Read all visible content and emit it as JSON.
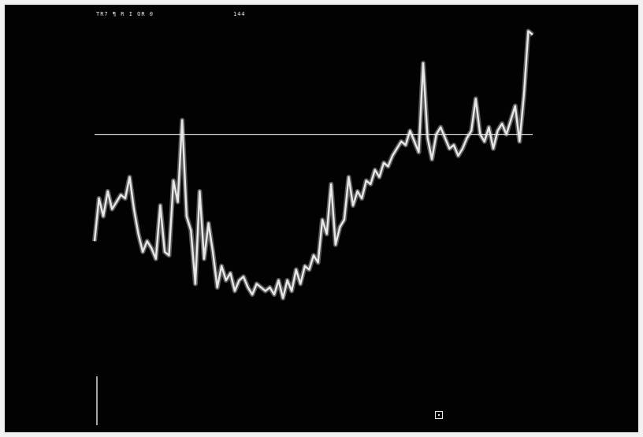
{
  "header": {
    "code": "TR7 ¶ R I OR 0",
    "counter": "144"
  },
  "colors": {
    "background": "#020202",
    "trace": "#e8e8e8",
    "frame": "#f2f2f2"
  },
  "chart_data": {
    "type": "line",
    "title": "",
    "xlabel": "",
    "ylabel": "",
    "grid": false,
    "legend": "none",
    "xlim": [
      0,
      100
    ],
    "ylim": [
      0,
      100
    ],
    "threshold": 68,
    "series": [
      {
        "x": [
          0,
          1,
          2,
          3,
          4,
          5,
          6,
          7,
          8,
          9,
          10,
          11,
          12,
          13,
          14,
          15,
          16,
          17,
          18,
          19,
          20,
          21,
          22,
          23,
          24,
          25,
          26,
          27,
          28,
          29,
          30,
          31,
          32,
          33,
          34,
          35,
          36,
          37,
          38,
          39,
          40,
          41,
          42,
          43,
          44,
          45,
          46,
          47,
          48,
          49,
          50,
          51,
          52,
          53,
          54,
          55,
          56,
          57,
          58,
          59,
          60,
          61,
          62,
          63,
          64,
          65,
          66,
          67,
          68,
          69,
          70,
          71,
          72,
          73,
          74,
          75,
          76,
          77,
          78,
          79,
          80,
          81,
          82,
          83,
          84,
          85,
          86,
          87,
          88,
          89,
          90,
          91,
          92,
          93,
          94,
          95,
          96,
          97,
          98,
          99,
          100
        ],
        "y": [
          38,
          50,
          45,
          52,
          47,
          49,
          51,
          50,
          56,
          47,
          40,
          35,
          38,
          36,
          33,
          48,
          35,
          34,
          55,
          49,
          72,
          45,
          41,
          26,
          52,
          33,
          43,
          35,
          25,
          31,
          27,
          29,
          24,
          27,
          28,
          25,
          23,
          26,
          25,
          24,
          25,
          23,
          27,
          22,
          27,
          24,
          30,
          26,
          31,
          30,
          34,
          32,
          44,
          40,
          54,
          37,
          42,
          44,
          56,
          48,
          52,
          50,
          55,
          54,
          58,
          56,
          60,
          59,
          62,
          64,
          66,
          65,
          69,
          66,
          63,
          88,
          67,
          61,
          68,
          70,
          67,
          64,
          65,
          62,
          64,
          67,
          69,
          78,
          68,
          66,
          70,
          64,
          69,
          71,
          68,
          72,
          76,
          66,
          79,
          97,
          96
        ]
      }
    ]
  }
}
